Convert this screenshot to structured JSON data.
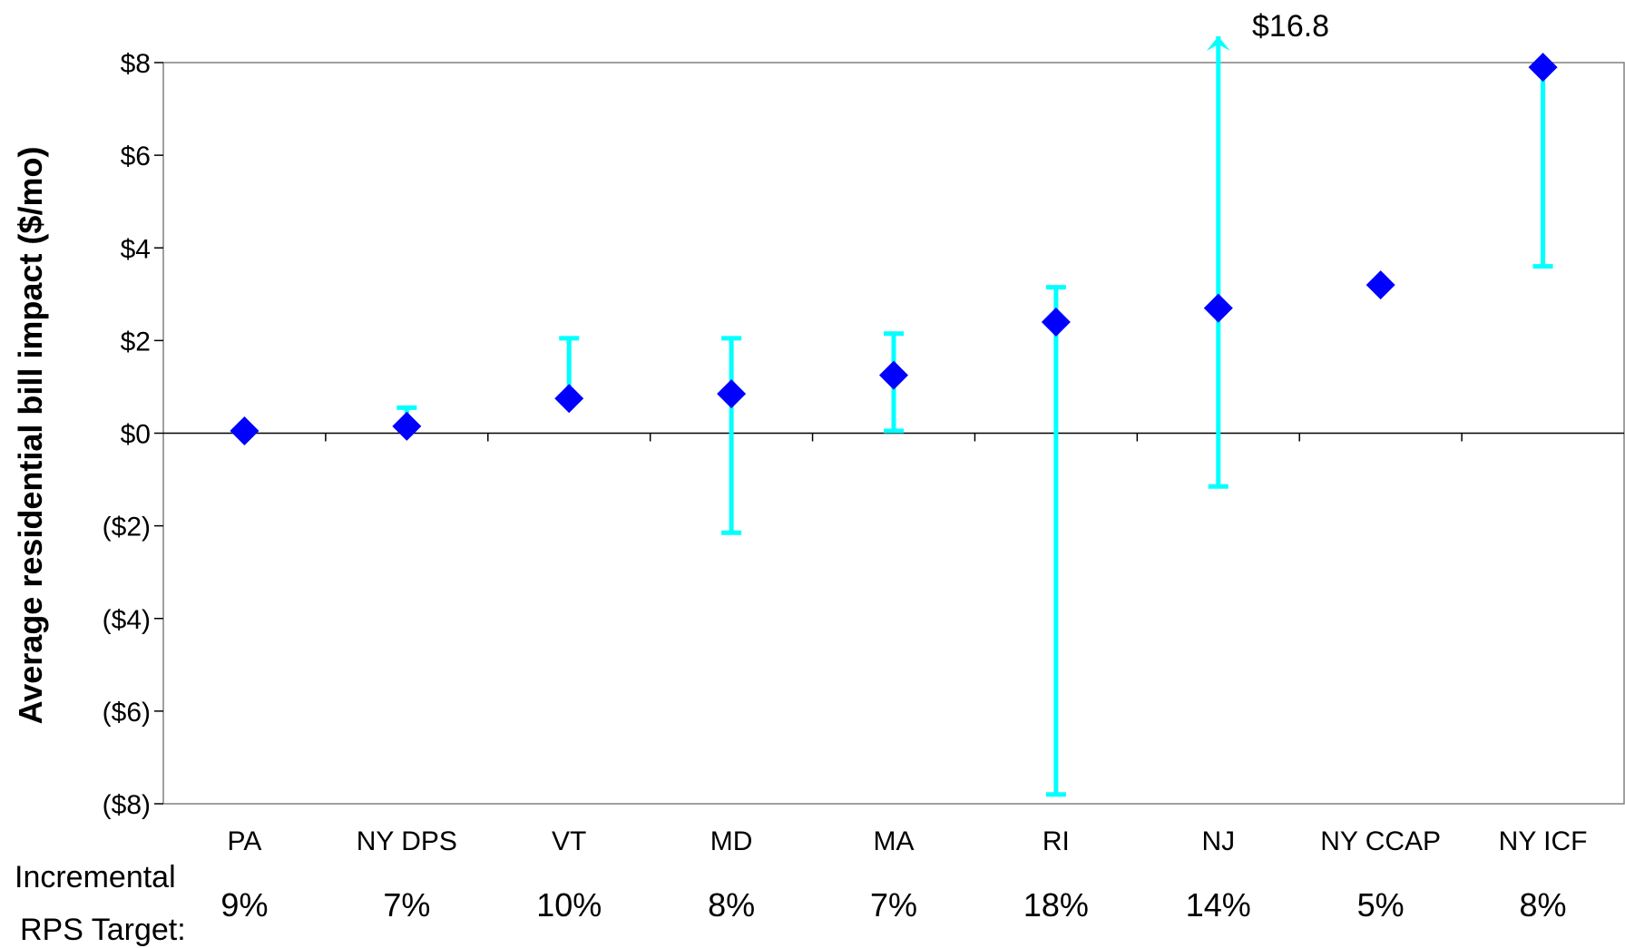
{
  "chart_data": {
    "type": "scatter",
    "xlabel": "",
    "ylabel": "Average residential bill impact ($/mo)",
    "ylim": [
      -8,
      8
    ],
    "yticks": [
      8,
      6,
      4,
      2,
      0,
      -2,
      -4,
      -6,
      -8
    ],
    "ytick_labels": [
      "$8",
      "$6",
      "$4",
      "$2",
      "$0",
      "($2)",
      "($4)",
      "($6)",
      "($8)"
    ],
    "grid": false,
    "categories": [
      "PA",
      "NY DPS",
      "VT",
      "MD",
      "MA",
      "RI",
      "NJ",
      "NY CCAP",
      "NY ICF"
    ],
    "values": [
      0.05,
      0.15,
      0.75,
      0.85,
      1.25,
      2.4,
      2.7,
      3.2,
      7.9
    ],
    "error_low": [
      null,
      0.1,
      0.7,
      -2.15,
      0.05,
      -7.8,
      -1.15,
      null,
      3.6
    ],
    "error_high": [
      null,
      0.55,
      2.05,
      2.05,
      2.15,
      3.15,
      16.8,
      null,
      7.9
    ],
    "point_color": "#0000FF",
    "error_color": "#00FFFF",
    "annotation": "$16.8",
    "row_label_line1": "Incremental",
    "row_label_line2": "RPS Target:",
    "rps_targets": [
      "9%",
      "7%",
      "10%",
      "8%",
      "7%",
      "18%",
      "14%",
      "5%",
      "8%"
    ]
  }
}
